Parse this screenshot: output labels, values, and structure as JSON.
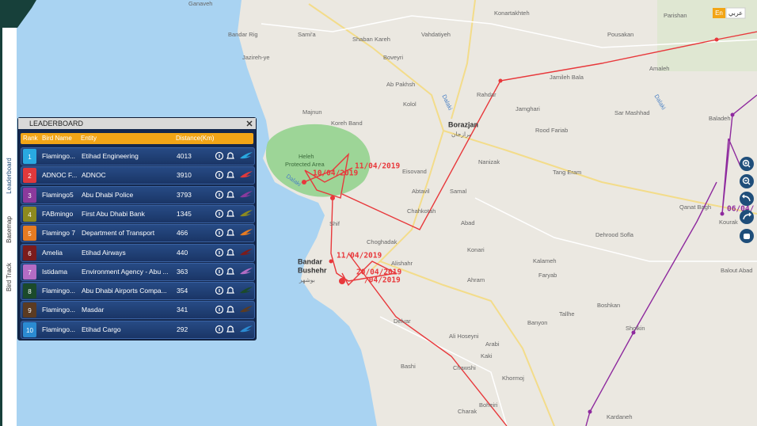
{
  "header": {
    "lang_en": "En",
    "lang_ar": "عربي"
  },
  "sidebar": {
    "tabs": [
      "Leaderboard",
      "Basemap",
      "Bird Track"
    ]
  },
  "leaderboard": {
    "title": "LEADERBOARD",
    "columns": [
      "Rank",
      "Bird Name",
      "Entity",
      "Distance(Km)"
    ],
    "rows": [
      {
        "rank": 1,
        "bird": "Flamingo...",
        "entity": "Etihad Engineering",
        "distance": 4013,
        "color": "#29a9e1"
      },
      {
        "rank": 2,
        "bird": "ADNOC F...",
        "entity": "ADNOC",
        "distance": 3910,
        "color": "#e0393c"
      },
      {
        "rank": 3,
        "bird": "Flamingo5",
        "entity": "Abu Dhabi Police",
        "distance": 3793,
        "color": "#8b3a9c"
      },
      {
        "rank": 4,
        "bird": "FABmingo",
        "entity": "First Abu Dhabi Bank",
        "distance": 1345,
        "color": "#8d8a1f"
      },
      {
        "rank": 5,
        "bird": "Flamingo 7",
        "entity": "Department of Transport",
        "distance": 466,
        "color": "#e67b22"
      },
      {
        "rank": 6,
        "bird": "Amelia",
        "entity": "Etihad Airways",
        "distance": 440,
        "color": "#7b1c1c"
      },
      {
        "rank": 7,
        "bird": "Istidama",
        "entity": "Environment Agency - Abu ...",
        "distance": 363,
        "color": "#b36cc4"
      },
      {
        "rank": 8,
        "bird": "Flamingo...",
        "entity": "Abu Dhabi Airports Compa...",
        "distance": 354,
        "color": "#1b4a2b"
      },
      {
        "rank": 9,
        "bird": "Flamingo...",
        "entity": "Masdar",
        "distance": 341,
        "color": "#5b3b22"
      },
      {
        "rank": 10,
        "bird": "Flamingo...",
        "entity": "Etihad Cargo",
        "distance": 292,
        "color": "#2b8bd2"
      }
    ]
  },
  "map": {
    "labels": [
      "Ganaveh",
      "Bandar Rig",
      "Jazireh-ye",
      "Sami'a",
      "Shaban Kareh",
      "Boveyri",
      "Vahdatiyeh",
      "Konartakhteh",
      "Parishan",
      "Pousakan",
      "Jamileh Bala",
      "Rahdar",
      "Ab Pakhsh",
      "Kolol",
      "Majnun",
      "Koreh Band",
      "Borazjan",
      "Jamghari",
      "Sar Mashhad",
      "Amaleh",
      "Baladeh",
      "Rood Fariab",
      "Eisovand",
      "Nanizak",
      "Tang Eram",
      "Abtavil",
      "Samal",
      "Chahkotah",
      "Shif",
      "Abad",
      "Qanat Bagh",
      "Kourak",
      "Dehrood Sofla",
      "Balout Abad",
      "Choghadak",
      "Alishahr",
      "Konari",
      "Kalameh",
      "Bandar",
      "Bushehr",
      "Ahram",
      "Faryab",
      "Boshkan",
      "Banyon",
      "Tallhe",
      "Sholkin",
      "Delvar",
      "Ali Hoseyni",
      "Arabi",
      "Bashi",
      "Chawshi",
      "Kaki",
      "Khormoj",
      "Boheiri",
      "Charak",
      "Kardaneh",
      "بوشهر",
      "برازجان"
    ],
    "rivers": [
      "Dalaki",
      "Dalaki",
      "Dalaki"
    ],
    "area": [
      "Heleh",
      "Protected Area"
    ],
    "track_labels_red": [
      "10/04/2019",
      "11/04/2019",
      "11/04/2019",
      "20/04/2019",
      "/04/2019"
    ],
    "track_labels_purple": [
      "06/04/"
    ]
  }
}
